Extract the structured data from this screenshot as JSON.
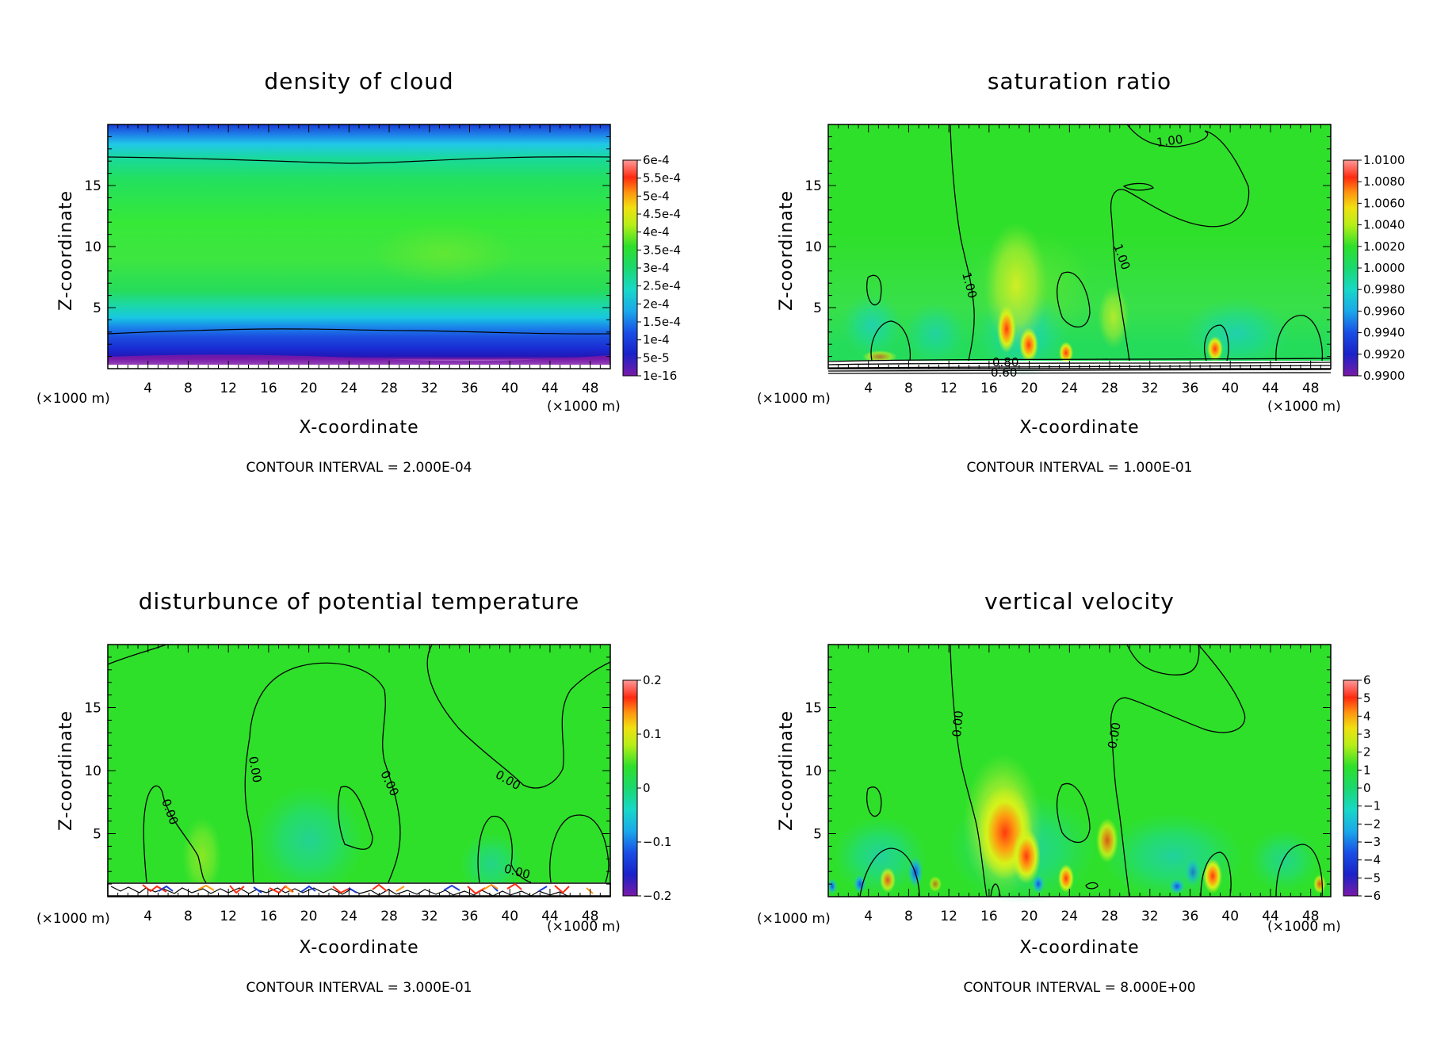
{
  "figure": {
    "layout": "2x2 panel of contour plots"
  },
  "chart_data": [
    {
      "type": "heatmap",
      "id": "p1",
      "title": "density of cloud",
      "xlabel": "X-coordinate",
      "ylabel": "Z-coordinate",
      "x_unit": "(×1000 m)",
      "z_unit": "(×1000 m)",
      "xlim": [
        0,
        50
      ],
      "ylim": [
        0,
        20
      ],
      "x_ticks": [
        4,
        8,
        12,
        16,
        20,
        24,
        28,
        32,
        36,
        40,
        44,
        48
      ],
      "y_ticks": [
        5,
        10,
        15
      ],
      "contour_interval": "CONTOUR INTERVAL = 2.000E-04",
      "colorbar_labels": [
        "6e-4",
        "5.5e-4",
        "5e-4",
        "4.5e-4",
        "4e-4",
        "3.5e-4",
        "3e-4",
        "2.5e-4",
        "2e-4",
        "1.5e-4",
        "1e-4",
        "5e-5",
        "1e-16"
      ],
      "contour_labels": []
    },
    {
      "type": "heatmap",
      "id": "p2",
      "title": "saturation ratio",
      "xlabel": "X-coordinate",
      "ylabel": "Z-coordinate",
      "x_unit": "(×1000 m)",
      "z_unit": "(×1000 m)",
      "xlim": [
        0,
        50
      ],
      "ylim": [
        0,
        20
      ],
      "x_ticks": [
        4,
        8,
        12,
        16,
        20,
        24,
        28,
        32,
        36,
        40,
        44,
        48
      ],
      "y_ticks": [
        5,
        10,
        15
      ],
      "contour_interval": "CONTOUR INTERVAL = 1.000E-01",
      "colorbar_labels": [
        "1.0100",
        "1.0080",
        "1.0060",
        "1.0040",
        "1.0020",
        "1.0000",
        "0.9980",
        "0.9960",
        "0.9940",
        "0.9920",
        "0.9900"
      ],
      "contour_labels": [
        "1.00",
        "1.00",
        "1.00",
        "0.60",
        "0.80"
      ]
    },
    {
      "type": "heatmap",
      "id": "p3",
      "title": "disturbunce of potential temperature",
      "xlabel": "X-coordinate",
      "ylabel": "Z-coordinate",
      "x_unit": "(×1000 m)",
      "z_unit": "(×1000 m)",
      "xlim": [
        0,
        50
      ],
      "ylim": [
        0,
        20
      ],
      "x_ticks": [
        4,
        8,
        12,
        16,
        20,
        24,
        28,
        32,
        36,
        40,
        44,
        48
      ],
      "y_ticks": [
        5,
        10,
        15
      ],
      "contour_interval": "CONTOUR INTERVAL = 3.000E-01",
      "colorbar_labels": [
        "0.2",
        "0.1",
        "0",
        "−0.1",
        "−0.2"
      ],
      "contour_labels": [
        "0.00",
        "0.00",
        "0.00",
        "0.00",
        "0.00"
      ]
    },
    {
      "type": "heatmap",
      "id": "p4",
      "title": "vertical velocity",
      "xlabel": "X-coordinate",
      "ylabel": "Z-coordinate",
      "x_unit": "(×1000 m)",
      "z_unit": "(×1000 m)",
      "xlim": [
        0,
        50
      ],
      "ylim": [
        0,
        20
      ],
      "x_ticks": [
        4,
        8,
        12,
        16,
        20,
        24,
        28,
        32,
        36,
        40,
        44,
        48
      ],
      "y_ticks": [
        5,
        10,
        15
      ],
      "contour_interval": "CONTOUR INTERVAL = 8.000E+00",
      "colorbar_labels": [
        "6",
        "5",
        "4",
        "3",
        "2",
        "1",
        "0",
        "−1",
        "−2",
        "−3",
        "−4",
        "−5",
        "−6"
      ],
      "contour_labels": [
        "0.00",
        "0.00"
      ]
    }
  ]
}
